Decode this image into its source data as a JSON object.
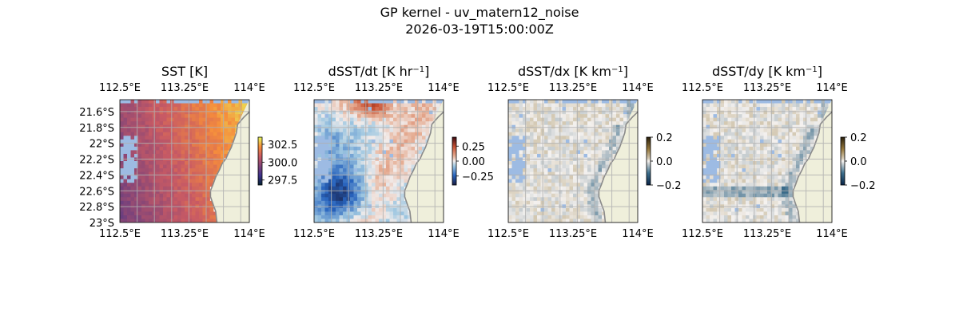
{
  "figure": {
    "title_line1": "GP kernel - uv_matern12_noise",
    "title_line2": "2026-03-19T15:00:00Z"
  },
  "colors": {
    "land": "#efefdb",
    "coast": "#8a8a8a",
    "masked_water": "#9dbbe3",
    "grid": "#b0b0b0"
  },
  "chart_data": [
    {
      "type": "heatmap",
      "title": "SST [K]",
      "title_base": "SST [K]",
      "title_sup": "",
      "title_tail": "",
      "xlabel": "",
      "ylabel": "",
      "xlim": [
        112.5,
        114.0
      ],
      "ylim": [
        -23.0,
        -21.45
      ],
      "x_ticks": [
        112.5,
        113.25,
        114.0
      ],
      "x_tick_labels": [
        "112.5°E",
        "113.25°E",
        "114°E"
      ],
      "y_ticks": [
        -21.6,
        -21.8,
        -22.0,
        -22.2,
        -22.4,
        -22.6,
        -22.8,
        -23.0
      ],
      "y_tick_labels": [
        "21.6°S",
        "21.8°S",
        "22°S",
        "22.2°S",
        "22.4°S",
        "22.6°S",
        "22.8°S",
        "23°S"
      ],
      "show_y_labels": true,
      "colormap": "thermal",
      "vmin": 296.8,
      "vmax": 303.5,
      "colorbar_ticks": [
        302.5,
        300.0,
        297.5
      ],
      "colorbar_labels": [
        "302.5",
        "300.0",
        "297.5"
      ]
    },
    {
      "type": "heatmap",
      "title": "dSST/dt [K hr−1]",
      "title_base": "dSST/dt [K hr",
      "title_sup": "−1",
      "title_tail": "]",
      "xlabel": "",
      "ylabel": "",
      "xlim": [
        112.5,
        114.0
      ],
      "ylim": [
        -23.0,
        -21.45
      ],
      "x_ticks": [
        112.5,
        113.25,
        114.0
      ],
      "x_tick_labels": [
        "112.5°E",
        "113.25°E",
        "114°E"
      ],
      "show_y_labels": false,
      "colormap": "balance",
      "vmin": -0.4,
      "vmax": 0.4,
      "colorbar_ticks": [
        0.25,
        0.0,
        -0.25
      ],
      "colorbar_labels": [
        "0.25",
        "0.00",
        "−0.25"
      ]
    },
    {
      "type": "heatmap",
      "title": "dSST/dx [K km−1]",
      "title_base": "dSST/dx [K km",
      "title_sup": "−1",
      "title_tail": "]",
      "xlabel": "",
      "ylabel": "",
      "xlim": [
        112.5,
        114.0
      ],
      "ylim": [
        -23.0,
        -21.45
      ],
      "x_ticks": [
        112.5,
        113.25,
        114.0
      ],
      "x_tick_labels": [
        "112.5°E",
        "113.25°E",
        "114°E"
      ],
      "show_y_labels": false,
      "colormap": "diff",
      "vmin": -0.2,
      "vmax": 0.2,
      "colorbar_ticks": [
        0.2,
        0.0,
        -0.2
      ],
      "colorbar_labels": [
        "0.2",
        "0.0",
        "−0.2"
      ]
    },
    {
      "type": "heatmap",
      "title": "dSST/dy [K km−1]",
      "title_base": "dSST/dy [K km",
      "title_sup": "−1",
      "title_tail": "]",
      "xlabel": "",
      "ylabel": "",
      "xlim": [
        112.5,
        114.0
      ],
      "ylim": [
        -23.0,
        -21.45
      ],
      "x_ticks": [
        112.5,
        113.25,
        114.0
      ],
      "x_tick_labels": [
        "112.5°E",
        "113.25°E",
        "114°E"
      ],
      "show_y_labels": false,
      "colormap": "diff",
      "vmin": -0.2,
      "vmax": 0.2,
      "colorbar_ticks": [
        0.2,
        0.0,
        -0.2
      ],
      "colorbar_labels": [
        "0.2",
        "0.0",
        "−0.2"
      ]
    }
  ]
}
